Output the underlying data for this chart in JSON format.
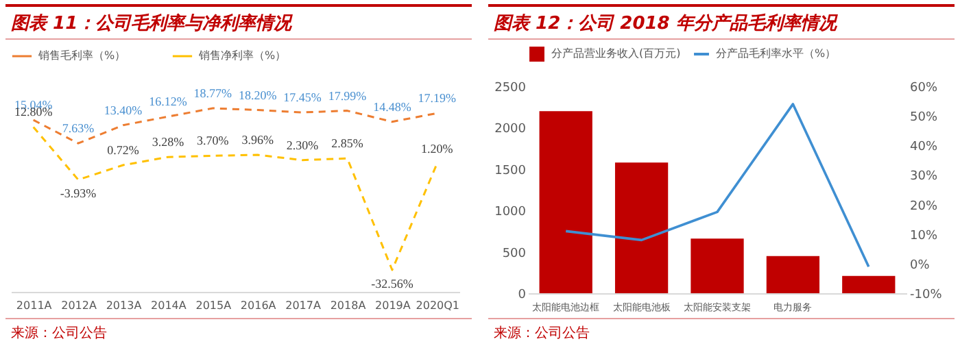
{
  "chart_data": [
    {
      "type": "line",
      "title": "图表 11：公司毛利率与净利率情况",
      "categories": [
        "2011A",
        "2012A",
        "2013A",
        "2014A",
        "2015A",
        "2016A",
        "2017A",
        "2018A",
        "2019A",
        "2020Q1"
      ],
      "series": [
        {
          "name": "销售毛利率（%）",
          "color": "#ed7d31",
          "values": [
            15.04,
            7.63,
            13.4,
            16.12,
            18.77,
            18.2,
            17.45,
            17.99,
            14.48,
            17.19
          ],
          "value_labels": [
            "15.04%",
            "7.63%",
            "13.40%",
            "16.12%",
            "18.77%",
            "18.20%",
            "17.45%",
            "17.99%",
            "14.48%",
            "17.19%"
          ]
        },
        {
          "name": "销售净利率（%）",
          "color": "#ffc000",
          "values": [
            12.8,
            -3.93,
            0.72,
            3.28,
            3.7,
            3.96,
            2.3,
            2.85,
            -32.56,
            1.2
          ],
          "value_labels": [
            "12.80%",
            "-3.93%",
            "0.72%",
            "3.28%",
            "3.70%",
            "3.96%",
            "2.30%",
            "2.85%",
            "-32.56%",
            "1.20%"
          ]
        }
      ],
      "line_style": "dashed",
      "legend": "top",
      "grid": false,
      "annotations": [
        "来源：公司公告"
      ]
    },
    {
      "type": "bar",
      "title": "图表 12：公司 2018 年分产品毛利率情况",
      "categories": [
        "太阳能电池边框",
        "太阳能电池板",
        "太阳能安装支架",
        "电力服务",
        null
      ],
      "series": [
        {
          "name": "分产品营业务收入(百万元)",
          "color": "#c00000",
          "values": [
            2200,
            1580,
            660,
            450,
            210
          ]
        },
        {
          "name": "分产品毛利率水平（%）",
          "color": "#3f8fd2",
          "type": "line",
          "axis": "y2",
          "values": [
            11,
            8,
            17.5,
            54,
            -1
          ]
        }
      ],
      "ylim": [
        0,
        2500
      ],
      "yticks": [
        0,
        500,
        1000,
        1500,
        2000,
        2500
      ],
      "y2lim": [
        -10,
        60
      ],
      "y2ticks": [
        {
          "value": -10,
          "label": "-10%"
        },
        {
          "value": 0,
          "label": "0%"
        },
        {
          "value": 10,
          "label": "10%"
        },
        {
          "value": 20,
          "label": "20%"
        },
        {
          "value": 30,
          "label": "30%"
        },
        {
          "value": 40,
          "label": "40%"
        },
        {
          "value": 50,
          "label": "50%"
        },
        {
          "value": 60,
          "label": "60%"
        }
      ],
      "legend": "top",
      "grid": false,
      "annotations": [
        "来源：公司公告"
      ]
    }
  ]
}
